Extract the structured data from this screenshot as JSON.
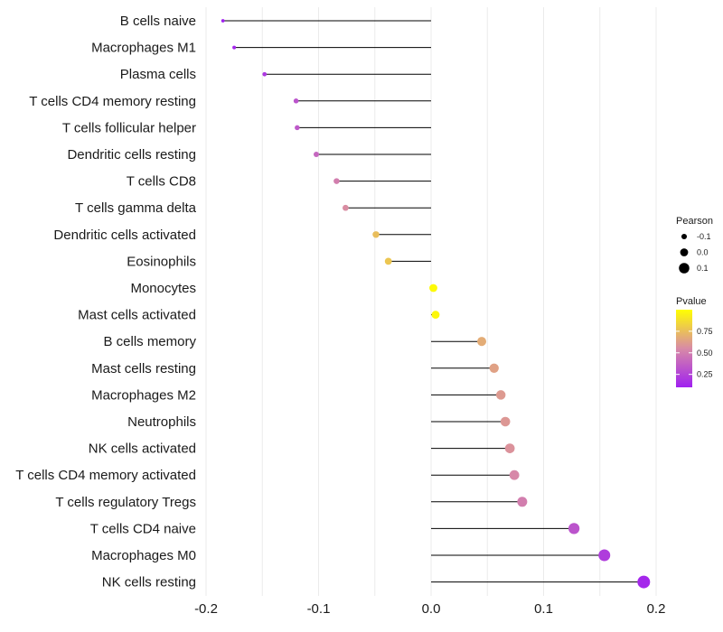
{
  "chart_data": {
    "type": "lollipop",
    "title": "",
    "xlabel": "",
    "ylabel": "",
    "xlim": [
      -0.2,
      0.2
    ],
    "xticks": [
      -0.2,
      -0.1,
      0.0,
      0.1,
      0.2
    ],
    "xtick_labels": [
      "-0.2",
      "-0.1",
      "0.0",
      "0.1",
      "0.2"
    ],
    "grid": true,
    "categories": [
      "B cells naive",
      "Macrophages M1",
      "Plasma cells",
      "T cells CD4 memory resting",
      "T cells follicular helper",
      "Dendritic cells resting",
      "T cells CD8",
      "T cells gamma delta",
      "Dendritic cells activated",
      "Eosinophils",
      "Monocytes",
      "Mast cells activated",
      "B cells memory",
      "Mast cells resting",
      "Macrophages M2",
      "Neutrophils",
      "NK cells activated",
      "T cells CD4 memory activated",
      "T cells regulatory  Tregs",
      "T cells CD4 naive",
      "Macrophages M0",
      "NK cells resting"
    ],
    "pearson": [
      -0.185,
      -0.175,
      -0.148,
      -0.12,
      -0.119,
      -0.102,
      -0.084,
      -0.076,
      -0.049,
      -0.038,
      0.002,
      0.004,
      0.045,
      0.056,
      0.062,
      0.066,
      0.07,
      0.074,
      0.081,
      0.127,
      0.154,
      0.189
    ],
    "pvalue": [
      0.08,
      0.13,
      0.2,
      0.32,
      0.34,
      0.4,
      0.5,
      0.56,
      0.75,
      0.78,
      0.98,
      0.97,
      0.68,
      0.64,
      0.61,
      0.6,
      0.58,
      0.54,
      0.5,
      0.32,
      0.22,
      0.13
    ],
    "size_legend": {
      "title": "Pearson",
      "labels": [
        "-0.1",
        "0.0",
        "0.1"
      ],
      "values": [
        -0.1,
        0.0,
        0.1
      ]
    },
    "color_legend": {
      "title": "Pvalue",
      "labels": [
        "0.75",
        "0.50",
        "0.25"
      ],
      "values": [
        0.75,
        0.5,
        0.25
      ],
      "range": [
        0.1,
        1.0
      ],
      "low_color": "#a020f0",
      "mid_color": "#d88aa6",
      "high_color": "#ffff00"
    },
    "stem_color": "#000000",
    "grid_color": "#ebebeb"
  }
}
